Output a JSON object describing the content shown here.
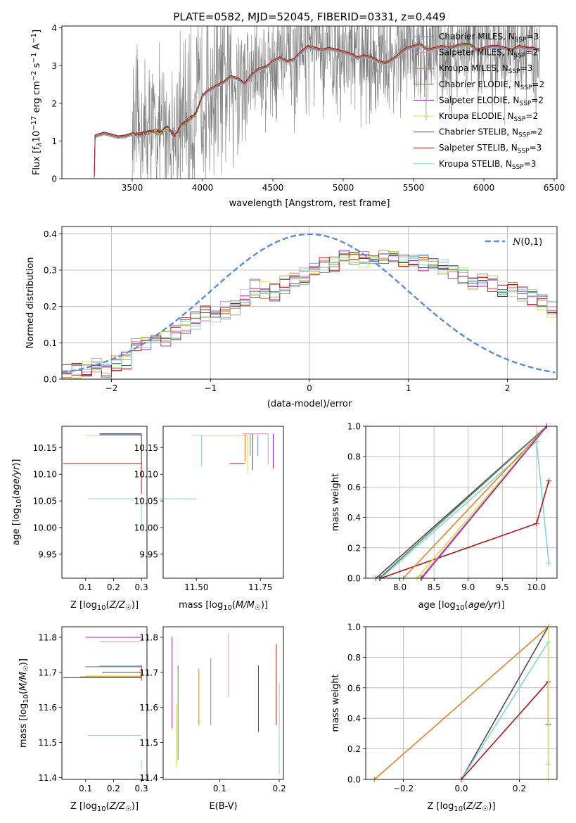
{
  "figure_title": "PLATE=0582, MJD=52045, FIBERID=0331, z=0.449",
  "colors": {
    "chabrier_miles": "#6a8fd9",
    "salpeter_miles": "#e58fc4",
    "kroupa_miles": "#e4832b",
    "chabrier_elodie": "#5e8a58",
    "salpeter_elodie": "#9b1fbd",
    "kroupa_elodie": "#d8e23e",
    "chabrier_stelib": "#4a4a4a",
    "salpeter_stelib": "#b01515",
    "kroupa_stelib": "#7fd8d6",
    "data_gray": "#808080",
    "gaussian": "#5b8cd6"
  },
  "chart_data": [
    {
      "id": "spectrum",
      "type": "line",
      "xlabel": "wavelength [Angstrom, rest frame]",
      "ylabel_parts": [
        "Flux [f",
        "λ",
        "10",
        "−17",
        " erg cm",
        "−2",
        " s",
        "−1",
        " A",
        "−1",
        "]"
      ],
      "xlim": [
        3000,
        6520
      ],
      "ylim": [
        0,
        4.05
      ],
      "xticks": [
        3500,
        4000,
        4500,
        5000,
        5500,
        6000,
        6500
      ],
      "yticks": [
        0,
        1,
        2,
        3,
        4
      ],
      "legend_placement": "upper right",
      "series": [
        {
          "name": "Chabrier MILES, N",
          "n": "3",
          "color_key": "chabrier_miles"
        },
        {
          "name": "Salpeter MILES, N",
          "n": "2",
          "color_key": "salpeter_miles"
        },
        {
          "name": "Kroupa MILES, N",
          "n": "3",
          "color_key": "kroupa_miles"
        },
        {
          "name": "Chabrier ELODIE, N",
          "n": "2",
          "color_key": "chabrier_elodie"
        },
        {
          "name": "Salpeter ELODIE, N",
          "n": "2",
          "color_key": "salpeter_elodie"
        },
        {
          "name": "Kroupa ELODIE, N",
          "n": "2",
          "color_key": "kroupa_elodie"
        },
        {
          "name": "Chabrier STELIB, N",
          "n": "2",
          "color_key": "chabrier_stelib"
        },
        {
          "name": "Salpeter STELIB, N",
          "n": "3",
          "color_key": "salpeter_stelib"
        },
        {
          "name": "Kroupa STELIB, N",
          "n": "3",
          "color_key": "kroupa_stelib"
        }
      ],
      "legend_sub": "SSP",
      "model_continuum": {
        "x": [
          3230,
          3235,
          3300,
          3350,
          3400,
          3450,
          3500,
          3550,
          3600,
          3650,
          3700,
          3750,
          3800,
          3850,
          3900,
          3950,
          4000,
          4050,
          4100,
          4150,
          4200,
          4250,
          4300,
          4350,
          4400,
          4450,
          4500,
          4550,
          4600,
          4650,
          4700,
          4750,
          4800,
          4850,
          4900,
          4950,
          5000,
          5050,
          5100,
          5150,
          5200,
          5250,
          5300,
          5350,
          5400,
          5450,
          5500,
          5550,
          5600,
          5650,
          5700,
          5750,
          5800,
          5850,
          5900,
          5950,
          6000,
          6050,
          6100,
          6150,
          6200,
          6250,
          6300,
          6350,
          6400
        ],
        "y": [
          0.0,
          1.12,
          1.2,
          1.15,
          1.1,
          1.12,
          1.18,
          1.15,
          1.2,
          1.25,
          1.2,
          1.35,
          1.1,
          1.4,
          1.55,
          1.7,
          2.2,
          2.35,
          2.45,
          2.55,
          2.7,
          2.65,
          2.5,
          2.75,
          2.9,
          2.95,
          3.1,
          3.2,
          3.1,
          3.15,
          3.35,
          3.5,
          3.45,
          3.4,
          3.45,
          3.4,
          3.35,
          3.3,
          3.2,
          3.25,
          3.2,
          3.1,
          3.05,
          3.15,
          3.3,
          3.45,
          3.5,
          3.55,
          3.4,
          3.45,
          3.5,
          3.45,
          3.5,
          3.55,
          3.55,
          3.4,
          3.45,
          3.5,
          3.5,
          3.45,
          3.4,
          3.5,
          3.45,
          3.45,
          3.4
        ]
      }
    },
    {
      "id": "residual-histogram",
      "type": "histogram",
      "xlabel": "(data-model)/error",
      "ylabel": "Normed distribution",
      "xlim": [
        -2.5,
        2.5
      ],
      "ylim": [
        0,
        0.42
      ],
      "xticks": [
        -2,
        -1,
        0,
        1,
        2
      ],
      "yticks": [
        0.0,
        0.1,
        0.2,
        0.3,
        0.4
      ],
      "legend_label": "N(0,1)",
      "legend_placement": "upper right",
      "bin_width": 0.1,
      "bin_start": -2.5,
      "base_values": [
        0.02,
        0.025,
        0.03,
        0.035,
        0.03,
        0.04,
        0.05,
        0.09,
        0.1,
        0.105,
        0.115,
        0.13,
        0.15,
        0.16,
        0.18,
        0.175,
        0.19,
        0.2,
        0.225,
        0.25,
        0.245,
        0.24,
        0.26,
        0.27,
        0.285,
        0.3,
        0.31,
        0.32,
        0.33,
        0.325,
        0.33,
        0.335,
        0.33,
        0.34,
        0.33,
        0.325,
        0.32,
        0.315,
        0.305,
        0.295,
        0.285,
        0.27,
        0.27,
        0.26,
        0.25,
        0.245,
        0.24,
        0.225,
        0.21,
        0.195,
        0.18,
        0.175,
        0.165,
        0.15,
        0.14,
        0.13,
        0.12,
        0.115,
        0.105,
        0.1,
        0.09,
        0.085,
        0.08,
        0.075,
        0.07,
        0.06,
        0.055,
        0.05,
        0.045,
        0.04
      ]
    },
    {
      "id": "age-vs-z",
      "type": "errorbar",
      "xlabel": "Z [log10(Z/Z☉)]",
      "ylabel": "age  [log10(age/yr)]",
      "xlim": [
        0.015,
        0.32
      ],
      "ylim": [
        9.905,
        10.19
      ],
      "xticks": [
        0.1,
        0.2,
        0.3
      ],
      "yticks": [
        9.95,
        10.0,
        10.05,
        10.1,
        10.15
      ],
      "points": [
        {
          "color_key": "chabrier_miles",
          "x": 0.3,
          "xerr": [
            0.15,
            0.0
          ],
          "y": 10.174,
          "yerr": [
            0.2,
            0.0
          ]
        },
        {
          "color_key": "kroupa_miles",
          "x": 0.3,
          "xerr": [
            0.15,
            0.0
          ],
          "y": 10.175,
          "yerr": [
            0.2,
            0.0
          ]
        },
        {
          "color_key": "kroupa_elodie",
          "x": 0.3,
          "xerr": [
            0.2,
            0.0
          ],
          "y": 10.172,
          "yerr": [
            0.26,
            0.0
          ]
        },
        {
          "color_key": "chabrier_stelib",
          "x": 0.3,
          "xerr": [
            0.15,
            0.0
          ],
          "y": 10.176,
          "yerr": [
            0.2,
            0.0
          ]
        },
        {
          "color_key": "salpeter_stelib",
          "x": 0.3,
          "xerr": [
            0.28,
            0.0
          ],
          "y": 10.12,
          "yerr": [
            0.2,
            0.0
          ]
        },
        {
          "color_key": "kroupa_stelib",
          "x": 0.3,
          "xerr": [
            0.19,
            0.0
          ],
          "y": 10.054,
          "yerr": [
            0.2,
            0.0
          ]
        }
      ]
    },
    {
      "id": "age-vs-mass",
      "type": "errorbar",
      "xlabel": "mass [log10(M/M☉)]",
      "ylabel": "",
      "xlim": [
        11.37,
        11.84
      ],
      "ylim": [
        9.905,
        10.19
      ],
      "xticks": [
        11.5,
        11.75
      ],
      "yticks": [
        9.95,
        10.0,
        10.05,
        10.1,
        10.15
      ],
      "points": [
        {
          "color_key": "kroupa_elodie",
          "x": 11.7,
          "xerr": [
            0.22,
            0.0
          ],
          "y": 10.172,
          "yerr": [
            0.25,
            0.0
          ]
        },
        {
          "color_key": "kroupa_stelib",
          "x": 11.52,
          "xerr": [
            0.0,
            0.0
          ],
          "y": 10.172,
          "yerr": [
            0.2,
            0.0
          ]
        },
        {
          "color_key": "kroupa_stelib",
          "x": 11.5,
          "xerr": [
            0.15,
            0.0
          ],
          "y": 10.054,
          "yerr": [
            0.0,
            0.0
          ]
        },
        {
          "color_key": "salpeter_stelib",
          "x": 11.69,
          "xerr": [
            0.06,
            0.0
          ],
          "y": 10.12,
          "yerr": [
            0.0,
            0.0
          ]
        },
        {
          "color_key": "kroupa_miles",
          "x": 11.69,
          "xerr": [
            0.0,
            0.0
          ],
          "y": 10.175,
          "yerr": [
            0.18,
            0.0
          ]
        },
        {
          "color_key": "chabrier_elodie",
          "x": 11.71,
          "xerr": [
            0.0,
            0.0
          ],
          "y": 10.175,
          "yerr": [
            0.14,
            0.0
          ]
        },
        {
          "color_key": "chabrier_stelib",
          "x": 11.72,
          "xerr": [
            0.0,
            0.0
          ],
          "y": 10.176,
          "yerr": [
            0.24,
            0.0
          ]
        },
        {
          "color_key": "chabrier_miles",
          "x": 11.74,
          "xerr": [
            0.0,
            0.0
          ],
          "y": 10.174,
          "yerr": [
            0.14,
            0.0
          ]
        },
        {
          "color_key": "salpeter_miles",
          "x": 11.78,
          "xerr": [
            0.1,
            0.0
          ],
          "y": 10.176,
          "yerr": [
            0.2,
            0.0
          ]
        },
        {
          "color_key": "salpeter_elodie",
          "x": 11.8,
          "xerr": [
            0.0,
            0.0
          ],
          "y": 10.176,
          "yerr": [
            0.23,
            0.0
          ]
        }
      ]
    },
    {
      "id": "weight-vs-age",
      "type": "line",
      "xlabel": "age  [log10(age/yr)]",
      "ylabel": "mass weight",
      "xlim": [
        7.5,
        10.3
      ],
      "ylim": [
        0,
        1
      ],
      "xticks": [
        8.0,
        8.5,
        9.0,
        9.5,
        10.0
      ],
      "yticks": [
        0.0,
        0.2,
        0.4,
        0.6,
        0.8,
        1.0
      ],
      "series": [
        {
          "color_key": "kroupa_stelib",
          "x": [
            7.72,
            10.0,
            10.18
          ],
          "y": [
            0.0,
            0.9,
            0.1
          ]
        },
        {
          "color_key": "chabrier_stelib",
          "x": [
            7.65,
            10.15
          ],
          "y": [
            0.0,
            1.0
          ]
        },
        {
          "color_key": "chabrier_miles",
          "x": [
            7.7,
            10.15
          ],
          "y": [
            0.0,
            1.0
          ]
        },
        {
          "color_key": "chabrier_elodie",
          "x": [
            7.7,
            10.15
          ],
          "y": [
            0.0,
            1.0
          ]
        },
        {
          "color_key": "salpeter_stelib",
          "x": [
            7.72,
            10.0,
            10.18
          ],
          "y": [
            0.0,
            0.36,
            0.64
          ]
        },
        {
          "color_key": "kroupa_miles",
          "x": [
            8.05,
            10.15
          ],
          "y": [
            0.0,
            1.0
          ]
        },
        {
          "color_key": "kroupa_elodie",
          "x": [
            8.25,
            10.15
          ],
          "y": [
            0.0,
            1.0
          ]
        },
        {
          "color_key": "salpeter_miles",
          "x": [
            8.3,
            10.15
          ],
          "y": [
            0.0,
            1.0
          ]
        },
        {
          "color_key": "salpeter_elodie",
          "x": [
            8.32,
            10.15
          ],
          "y": [
            0.0,
            1.0
          ]
        }
      ]
    },
    {
      "id": "mass-vs-z",
      "type": "errorbar",
      "xlabel": "Z [log10(Z/Z☉)]",
      "ylabel": "mass [log10(M/M☉)]",
      "xlim": [
        0.015,
        0.32
      ],
      "ylim": [
        11.395,
        11.83
      ],
      "xticks": [
        0.1,
        0.2,
        0.3
      ],
      "yticks": [
        11.4,
        11.5,
        11.6,
        11.7,
        11.8
      ],
      "points": [
        {
          "color_key": "salpeter_elodie",
          "x": 0.3,
          "xerr": [
            0.2,
            0.0
          ],
          "y": 11.8,
          "yerr": [
            0.0,
            0.0
          ]
        },
        {
          "color_key": "salpeter_miles",
          "x": 0.3,
          "xerr": [
            0.15,
            0.0
          ],
          "y": 11.788,
          "yerr": [
            0.0,
            0.0
          ]
        },
        {
          "color_key": "chabrier_miles",
          "x": 0.3,
          "xerr": [
            0.15,
            0.0
          ],
          "y": 11.718,
          "yerr": [
            0.0,
            0.0
          ]
        },
        {
          "color_key": "chabrier_elodie",
          "x": 0.3,
          "xerr": [
            0.2,
            0.0
          ],
          "y": 11.716,
          "yerr": [
            0.0,
            0.0
          ]
        },
        {
          "color_key": "chabrier_stelib",
          "x": 0.3,
          "xerr": [
            0.14,
            0.0
          ],
          "y": 11.7,
          "yerr": [
            0.0,
            0.0
          ]
        },
        {
          "color_key": "kroupa_elodie",
          "x": 0.3,
          "xerr": [
            0.2,
            0.0
          ],
          "y": 11.69,
          "yerr": [
            0.0,
            0.0
          ]
        },
        {
          "color_key": "kroupa_miles",
          "x": 0.3,
          "xerr": [
            0.22,
            0.0
          ],
          "y": 11.688,
          "yerr": [
            0.0,
            0.0
          ]
        },
        {
          "color_key": "salpeter_stelib",
          "x": 0.3,
          "xerr": [
            0.28,
            0.0
          ],
          "y": 11.685,
          "yerr": [
            0.02,
            0.08
          ]
        },
        {
          "color_key": "kroupa_stelib",
          "x": 0.3,
          "xerr": [
            0.19,
            0.0
          ],
          "y": 11.52,
          "yerr": [
            0.0,
            0.0
          ]
        },
        {
          "color_key": "kroupa_stelib",
          "x": 0.3,
          "xerr": [
            0.0,
            0.0
          ],
          "y": 11.45,
          "yerr": [
            0.06,
            0.0
          ]
        }
      ]
    },
    {
      "id": "mass-vs-ebv",
      "type": "errorbar",
      "xlabel": "E(B-V)",
      "ylabel": "",
      "xlim": [
        0.005,
        0.207
      ],
      "ylim": [
        11.395,
        11.83
      ],
      "xticks": [
        0.1,
        0.2
      ],
      "yticks": [
        11.4,
        11.5,
        11.6,
        11.7,
        11.8
      ],
      "points": [
        {
          "color_key": "salpeter_elodie",
          "x": 0.02,
          "yr": [
            11.54,
            11.8
          ]
        },
        {
          "color_key": "kroupa_elodie",
          "x": 0.027,
          "yr": [
            11.43,
            11.61
          ]
        },
        {
          "color_key": "chabrier_elodie",
          "x": 0.03,
          "yr": [
            11.45,
            11.72
          ]
        },
        {
          "color_key": "kroupa_miles",
          "x": 0.065,
          "yr": [
            11.55,
            11.71
          ]
        },
        {
          "color_key": "chabrier_miles",
          "x": 0.085,
          "yr": [
            11.55,
            11.74
          ]
        },
        {
          "color_key": "salpeter_miles",
          "x": 0.115,
          "yr": [
            11.63,
            11.81
          ]
        },
        {
          "color_key": "chabrier_stelib",
          "x": 0.165,
          "yr": [
            11.53,
            11.72
          ]
        },
        {
          "color_key": "salpeter_stelib",
          "x": 0.195,
          "yr": [
            11.55,
            11.78
          ]
        },
        {
          "color_key": "kroupa_stelib",
          "x": 0.2,
          "yr": [
            11.41,
            11.67
          ]
        }
      ]
    },
    {
      "id": "weight-vs-z",
      "type": "line",
      "xlabel": "Z [log10(Z/Z☉)]",
      "ylabel": "mass weight",
      "xlim": [
        -0.33,
        0.33
      ],
      "ylim": [
        0,
        1
      ],
      "xticks": [
        -0.2,
        0.0,
        0.2
      ],
      "yticks": [
        0.0,
        0.2,
        0.4,
        0.6,
        0.8,
        1.0
      ],
      "series": [
        {
          "color_key": "kroupa_miles",
          "x": [
            -0.3,
            0.3
          ],
          "y": [
            0.0,
            1.0
          ]
        },
        {
          "color_key": "chabrier_stelib",
          "x": [
            0.0,
            0.3
          ],
          "y": [
            0.0,
            1.0
          ]
        },
        {
          "color_key": "kroupa_stelib",
          "x": [
            0.0,
            0.3,
            0.3
          ],
          "y": [
            0.0,
            0.9,
            0.1
          ]
        },
        {
          "color_key": "salpeter_stelib",
          "x": [
            0.0,
            0.3,
            0.3
          ],
          "y": [
            0.0,
            0.64,
            0.36
          ]
        },
        {
          "color_key": "kroupa_elodie",
          "x": [
            0.3,
            0.3
          ],
          "y": [
            0.0,
            1.0
          ]
        }
      ]
    }
  ]
}
